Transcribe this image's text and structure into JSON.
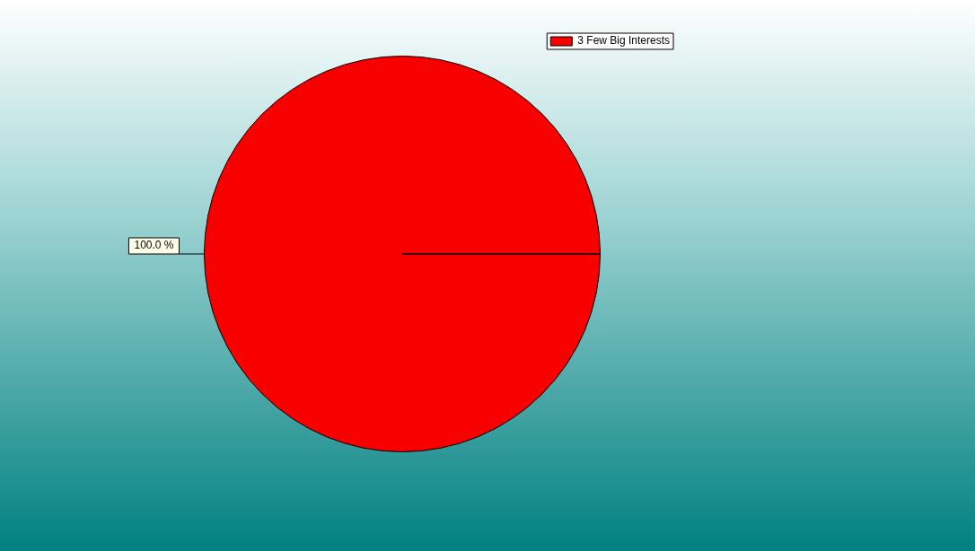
{
  "chart_data": {
    "type": "pie",
    "categories": [
      "3 Few Big Interests"
    ],
    "values": [
      100
    ],
    "colors": [
      "#f80000"
    ],
    "value_labels": [
      "100.0 %"
    ],
    "legend": "top right"
  }
}
